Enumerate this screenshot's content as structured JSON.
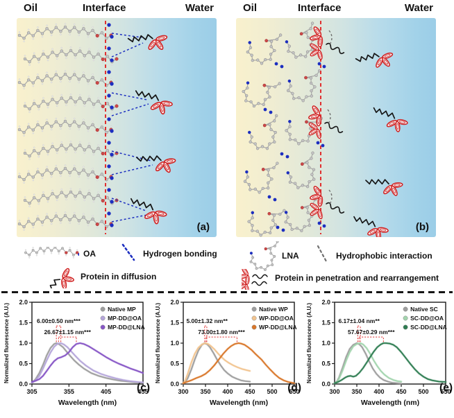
{
  "panel_a": {
    "oil": "Oil",
    "interface": "Interface",
    "water": "Water",
    "tag": "(a)"
  },
  "panel_b": {
    "oil": "Oil",
    "interface": "Interface",
    "water": "Water",
    "tag": "(b)"
  },
  "legend": {
    "left": [
      {
        "icon": "oa-molecule-icon",
        "label": "OA"
      },
      {
        "icon": "hydrogen-bonding-icon",
        "label": "Hydrogen bonding"
      },
      {
        "icon": "protein-diffusion-icon",
        "label": "Protein in diffusion"
      }
    ],
    "right": [
      {
        "icon": "lna-molecule-icon",
        "label": "LNA"
      },
      {
        "icon": "hydrophobic-interaction-icon",
        "label": "Hydrophobic interaction"
      },
      {
        "icon": "protein-penetration-icon",
        "label": "Protein in penetration and rearrangement"
      }
    ]
  },
  "colors": {
    "interface_line": "#e03030",
    "hydrogen_bond": "#1c2ec0",
    "hydrophobic": "#6f6f6f",
    "protein_red": "#d01f1f",
    "molecule_gray": "#9a9a9a",
    "oil_bg": "#f9f1cd",
    "water_bg": "#9bcde7"
  },
  "chart_data": [
    {
      "id": "c",
      "tag": "(c)",
      "type": "line",
      "title": "",
      "xlabel": "Wavelength (nm)",
      "ylabel": "Normalized fluorescence (A.U.)",
      "xlim": [
        305,
        455
      ],
      "ylim": [
        0,
        2.0
      ],
      "xticks": [
        305,
        355,
        405,
        455
      ],
      "yticks": [
        "0.0",
        "0.5",
        "1.0",
        "1.5",
        "2.0"
      ],
      "grid": false,
      "legend_position": "top-right",
      "series": [
        {
          "name": "Native MP",
          "color": "#9e9e9e",
          "x": [
            305,
            310,
            315,
            320,
            325,
            330,
            335,
            338,
            342,
            347,
            352,
            357,
            362,
            368,
            375,
            385,
            395,
            405,
            415,
            425,
            435,
            445,
            455
          ],
          "y": [
            0.03,
            0.12,
            0.27,
            0.47,
            0.7,
            0.88,
            0.98,
            1.0,
            0.97,
            0.9,
            0.79,
            0.68,
            0.58,
            0.48,
            0.38,
            0.27,
            0.2,
            0.15,
            0.11,
            0.08,
            0.06,
            0.04,
            0.03
          ]
        },
        {
          "name": "MP-DD@OA",
          "color": "#b5a6da",
          "x": [
            305,
            310,
            315,
            320,
            325,
            330,
            335,
            340,
            344,
            348,
            353,
            358,
            363,
            370,
            378,
            388,
            398,
            408,
            418,
            428,
            438,
            448,
            455
          ],
          "y": [
            0.03,
            0.09,
            0.2,
            0.38,
            0.58,
            0.77,
            0.91,
            0.99,
            1.0,
            0.97,
            0.9,
            0.8,
            0.7,
            0.57,
            0.45,
            0.33,
            0.25,
            0.19,
            0.14,
            0.1,
            0.07,
            0.05,
            0.04
          ]
        },
        {
          "name": "MP-DD@LNA",
          "color": "#8756c6",
          "x": [
            305,
            310,
            315,
            320,
            325,
            330,
            335,
            340,
            345,
            350,
            355,
            360,
            365,
            370,
            375,
            382,
            390,
            398,
            406,
            414,
            422,
            430,
            438,
            446,
            455
          ],
          "y": [
            0.05,
            0.08,
            0.12,
            0.2,
            0.32,
            0.45,
            0.56,
            0.63,
            0.66,
            0.7,
            0.78,
            0.9,
            0.98,
            1.0,
            0.98,
            0.92,
            0.83,
            0.74,
            0.65,
            0.57,
            0.5,
            0.44,
            0.38,
            0.33,
            0.27
          ]
        }
      ],
      "annotations": [
        {
          "text": "6.00±0.50 nm***",
          "x1": 338,
          "x2": 344,
          "y": 1.42
        },
        {
          "text": "26.67±1.15 nm***",
          "x1": 341,
          "x2": 365,
          "y": 1.15
        }
      ]
    },
    {
      "id": "d",
      "tag": "(d)",
      "type": "line",
      "title": "",
      "xlabel": "Wavelength (nm)",
      "ylabel": "Normalized fluorescence (A.U.)",
      "xlim": [
        300,
        550
      ],
      "ylim": [
        0,
        2.0
      ],
      "xticks": [
        300,
        350,
        400,
        450,
        500,
        550
      ],
      "yticks": [
        "0.0",
        "0.5",
        "1.0",
        "1.5",
        "2.0"
      ],
      "grid": false,
      "legend_position": "top-right",
      "series": [
        {
          "name": "Native WP",
          "color": "#9e9e9e",
          "x": [
            300,
            305,
            310,
            318,
            326,
            334,
            342,
            348,
            354,
            360,
            368,
            376,
            384,
            392,
            400,
            410,
            420,
            430,
            440,
            450
          ],
          "y": [
            0.02,
            0.06,
            0.14,
            0.35,
            0.6,
            0.82,
            0.96,
            1.0,
            0.97,
            0.9,
            0.76,
            0.6,
            0.46,
            0.34,
            0.26,
            0.18,
            0.13,
            0.09,
            0.07,
            0.06
          ]
        },
        {
          "name": "WP-DD@OA",
          "color": "#f2c48f",
          "x": [
            300,
            305,
            310,
            318,
            326,
            334,
            342,
            350,
            356,
            362,
            370,
            378,
            386,
            394,
            402,
            412,
            422,
            432,
            442,
            450
          ],
          "y": [
            0.02,
            0.1,
            0.25,
            0.52,
            0.74,
            0.89,
            0.97,
            1.0,
            0.98,
            0.93,
            0.85,
            0.75,
            0.66,
            0.58,
            0.52,
            0.46,
            0.41,
            0.37,
            0.34,
            0.32
          ]
        },
        {
          "name": "WP-DD@LNA",
          "color": "#d9772a",
          "x": [
            300,
            310,
            320,
            330,
            340,
            350,
            360,
            370,
            380,
            390,
            400,
            408,
            416,
            424,
            430,
            438,
            446,
            454,
            462,
            470,
            476,
            486,
            496,
            506,
            516,
            526,
            536,
            550
          ],
          "y": [
            0.02,
            0.06,
            0.1,
            0.15,
            0.19,
            0.25,
            0.34,
            0.46,
            0.6,
            0.74,
            0.86,
            0.93,
            0.98,
            1.0,
            0.99,
            0.96,
            0.9,
            0.83,
            0.74,
            0.66,
            0.6,
            0.47,
            0.35,
            0.24,
            0.15,
            0.09,
            0.05,
            0.02
          ]
        }
      ],
      "annotations": [
        {
          "text": "5.00±1.32 nm**",
          "x1": 348,
          "x2": 353,
          "y": 1.42
        },
        {
          "text": "73.00±1.80 nm***",
          "x1": 351,
          "x2": 421,
          "y": 1.15
        }
      ]
    },
    {
      "id": "e",
      "tag": "(e)",
      "type": "line",
      "title": "",
      "xlabel": "Wavelength (nm)",
      "ylabel": "Normalized fluorescence (A.U.)",
      "xlim": [
        300,
        550
      ],
      "ylim": [
        0,
        2.0
      ],
      "xticks": [
        300,
        350,
        400,
        450,
        500,
        550
      ],
      "yticks": [
        "0.0",
        "0.5",
        "1.0",
        "1.5",
        "2.0"
      ],
      "grid": false,
      "legend_position": "top-right",
      "series": [
        {
          "name": "Native SC",
          "color": "#9e9e9e",
          "x": [
            300,
            305,
            310,
            318,
            326,
            334,
            342,
            350,
            356,
            362,
            370,
            378,
            386,
            394,
            402,
            410,
            420,
            430,
            440,
            450
          ],
          "y": [
            0.02,
            0.06,
            0.16,
            0.4,
            0.66,
            0.86,
            0.96,
            1.0,
            0.97,
            0.9,
            0.74,
            0.55,
            0.38,
            0.25,
            0.16,
            0.1,
            0.06,
            0.03,
            0.02,
            0.01
          ]
        },
        {
          "name": "SC-DD@OA",
          "color": "#a3d5ae",
          "x": [
            300,
            305,
            310,
            318,
            326,
            334,
            342,
            350,
            358,
            364,
            372,
            380,
            388,
            396,
            404,
            412,
            422,
            432,
            442,
            450
          ],
          "y": [
            0.02,
            0.05,
            0.13,
            0.33,
            0.57,
            0.78,
            0.92,
            0.98,
            1.0,
            0.97,
            0.88,
            0.74,
            0.58,
            0.44,
            0.32,
            0.23,
            0.15,
            0.1,
            0.07,
            0.06
          ]
        },
        {
          "name": "SC-DD@LNA",
          "color": "#2f7d52",
          "x": [
            300,
            308,
            316,
            324,
            330,
            336,
            342,
            348,
            356,
            364,
            372,
            380,
            388,
            396,
            404,
            410,
            416,
            424,
            432,
            440,
            450,
            460,
            470,
            480,
            490,
            500,
            510,
            520,
            535,
            550
          ],
          "y": [
            0.02,
            0.05,
            0.1,
            0.16,
            0.19,
            0.2,
            0.18,
            0.2,
            0.28,
            0.39,
            0.52,
            0.66,
            0.79,
            0.9,
            0.97,
            1.0,
            1.0,
            0.99,
            0.96,
            0.9,
            0.78,
            0.64,
            0.5,
            0.37,
            0.26,
            0.18,
            0.12,
            0.09,
            0.06,
            0.05
          ]
        }
      ],
      "annotations": [
        {
          "text": "6.17±1.04 nm**",
          "x1": 352,
          "x2": 358,
          "y": 1.42
        },
        {
          "text": "57.67±0.29 nm***",
          "x1": 355,
          "x2": 410,
          "y": 1.15
        }
      ]
    }
  ]
}
